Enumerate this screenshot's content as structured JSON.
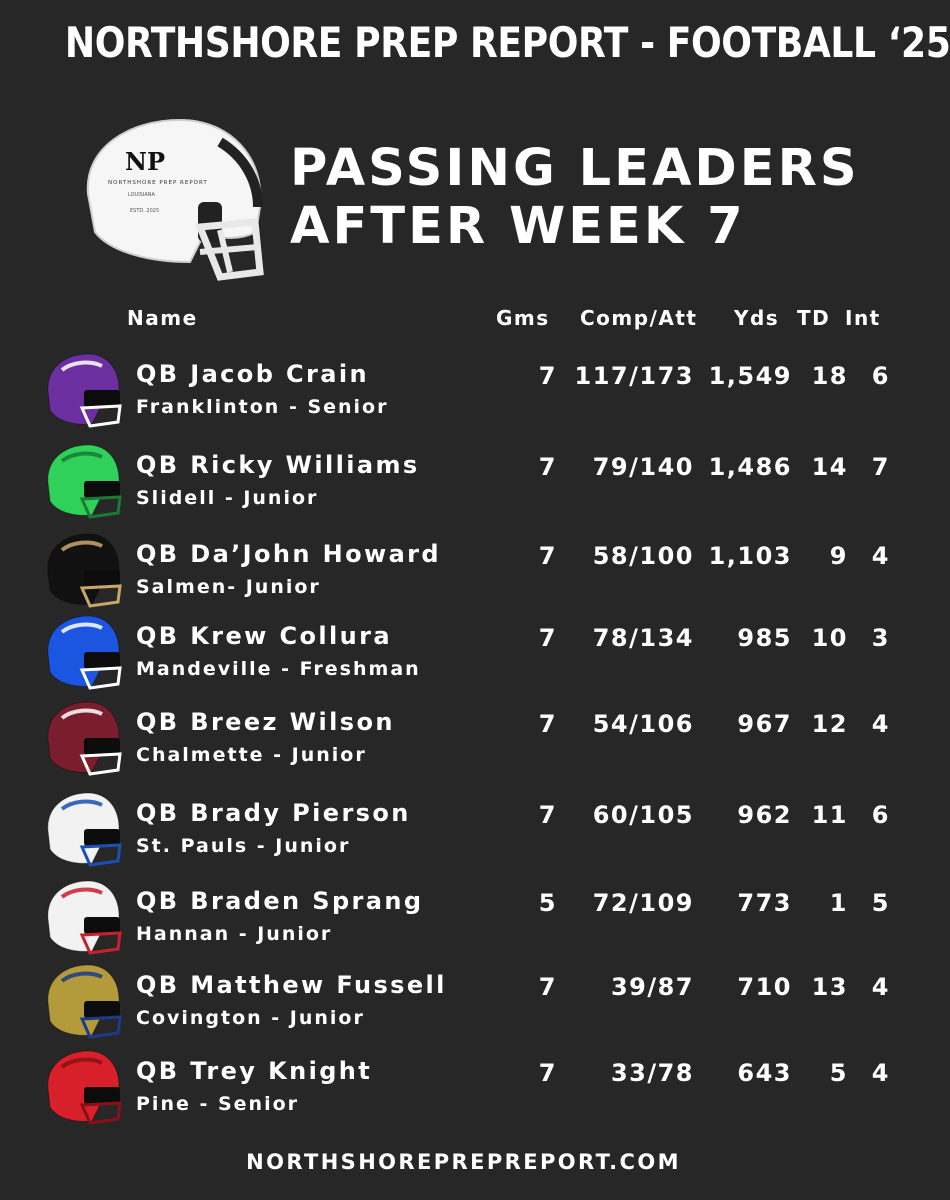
{
  "banner": "NORTHSHORE PREP REPORT - FOOTBALL ‘25",
  "headline": {
    "line1": "PASSING LEADERS",
    "line2": "AFTER WEEK 7"
  },
  "logo": {
    "letters": "NP",
    "text": "NORTHSHORE PREP REPORT",
    "state": "LOUISIANA",
    "est": "ESTD. 2025"
  },
  "columns": {
    "name": "Name",
    "games": "Gms",
    "comp_att": "Comp/Att",
    "yards": "Yds",
    "td": "TD",
    "int": "Int"
  },
  "players": [
    {
      "name": "QB Jacob Crain",
      "sub": "Franklinton - Senior",
      "games": "7",
      "comp_att": "117/173",
      "yards": "1,549",
      "td": "18",
      "int": "6",
      "color": "#6b2fa0",
      "accent": "#ffffff"
    },
    {
      "name": "QB Ricky Williams",
      "sub": "Slidell - Junior",
      "games": "7",
      "comp_att": "79/140",
      "yards": "1,486",
      "td": "14",
      "int": "7",
      "color": "#2fd15a",
      "accent": "#1a7a34"
    },
    {
      "name": "QB Da’John Howard",
      "sub": "Salmen- Junior",
      "games": "7",
      "comp_att": "58/100",
      "yards": "1,103",
      "td": "9",
      "int": "4",
      "color": "#111111",
      "accent": "#c8a86a"
    },
    {
      "name": "QB Krew Collura",
      "sub": "Mandeville - Freshman",
      "games": "7",
      "comp_att": "78/134",
      "yards": "985",
      "td": "10",
      "int": "3",
      "color": "#1b55e0",
      "accent": "#ffffff"
    },
    {
      "name": "QB Breez Wilson",
      "sub": "Chalmette - Junior",
      "games": "7",
      "comp_att": "54/106",
      "yards": "967",
      "td": "12",
      "int": "4",
      "color": "#7a1e2e",
      "accent": "#ffffff"
    },
    {
      "name": "QB Brady Pierson",
      "sub": "St. Pauls - Junior",
      "games": "7",
      "comp_att": "60/105",
      "yards": "962",
      "td": "11",
      "int": "6",
      "color": "#f2f2f2",
      "accent": "#1c4fb5"
    },
    {
      "name": "QB Braden Sprang",
      "sub": "Hannan - Junior",
      "games": "5",
      "comp_att": "72/109",
      "yards": "773",
      "td": "1",
      "int": "5",
      "color": "#f2f2f2",
      "accent": "#c8202e"
    },
    {
      "name": "QB Matthew Fussell",
      "sub": "Covington - Junior",
      "games": "7",
      "comp_att": "39/87",
      "yards": "710",
      "td": "13",
      "int": "4",
      "color": "#b39a3a",
      "accent": "#1c3a8a"
    },
    {
      "name": "QB Trey Knight",
      "sub": "Pine - Senior",
      "games": "7",
      "comp_att": "33/78",
      "yards": "643",
      "td": "5",
      "int": "4",
      "color": "#d8202a",
      "accent": "#8a1018"
    }
  ],
  "footer": "NORTHSHOREPREPREPORT.COM"
}
